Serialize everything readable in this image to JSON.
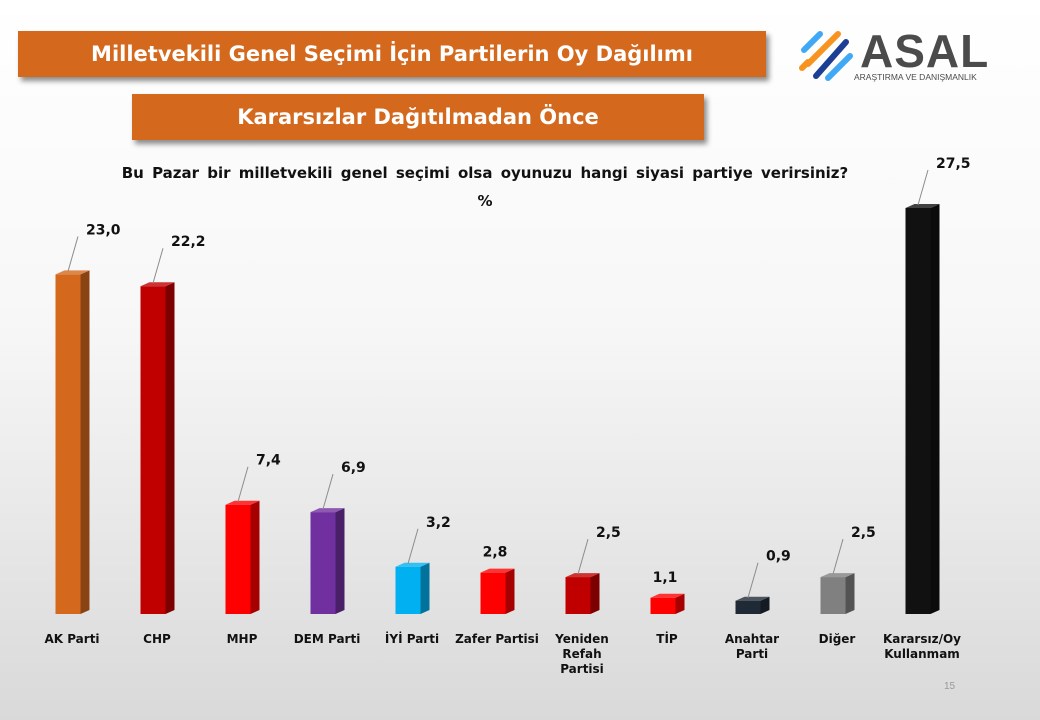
{
  "header": {
    "title": "Milletvekili Genel Seçimi İçin Partilerin Oy Dağılımı",
    "subtitle": "Kararsızlar Dağıtılmadan Önce"
  },
  "logo": {
    "name": "ASAL",
    "tagline": "ARAŞTIRMA VE DANIŞMANLIK",
    "colors": [
      "#3fa9f5",
      "#f7931e",
      "#1c3f94"
    ]
  },
  "question": "Bu Pazar bir milletvekili genel seçimi olsa oyunuzu hangi siyasi partiye verirsiniz?",
  "unit": "%",
  "page_number": "15",
  "chart_data": {
    "type": "bar",
    "title": "",
    "categories": [
      "AK Parti",
      "CHP",
      "MHP",
      "DEM Parti",
      "İYİ Parti",
      "Zafer Partisi",
      "Yeniden Refah Partisi",
      "TİP",
      "Anahtar Parti",
      "Diğer",
      "Kararsız/Oy Kullanmam"
    ],
    "category_lines": [
      [
        "AK Parti"
      ],
      [
        "CHP"
      ],
      [
        "MHP"
      ],
      [
        "DEM Parti"
      ],
      [
        "İYİ Parti"
      ],
      [
        "Zafer Partisi"
      ],
      [
        "Yeniden",
        "Refah",
        "Partisi"
      ],
      [
        "TİP"
      ],
      [
        "Anahtar",
        "Parti"
      ],
      [
        "Diğer"
      ],
      [
        "Kararsız/Oy",
        "Kullanmam"
      ]
    ],
    "values": [
      23.0,
      22.2,
      7.4,
      6.9,
      3.2,
      2.8,
      2.5,
      1.1,
      0.9,
      2.5,
      27.5
    ],
    "value_labels": [
      "23,0",
      "22,2",
      "7,4",
      "6,9",
      "3,2",
      "2,8",
      "2,5",
      "1,1",
      "0,9",
      "2,5",
      "27,5"
    ],
    "colors": [
      "#d4691e",
      "#c00000",
      "#ff0000",
      "#7030a0",
      "#00b0f0",
      "#ff0000",
      "#c00000",
      "#ff0000",
      "#1f2a36",
      "#808080",
      "#111111"
    ],
    "leader_line": [
      true,
      true,
      true,
      true,
      true,
      false,
      true,
      false,
      true,
      true,
      true
    ],
    "ylim": [
      0,
      27.5
    ],
    "grid": false,
    "legend": "none"
  }
}
